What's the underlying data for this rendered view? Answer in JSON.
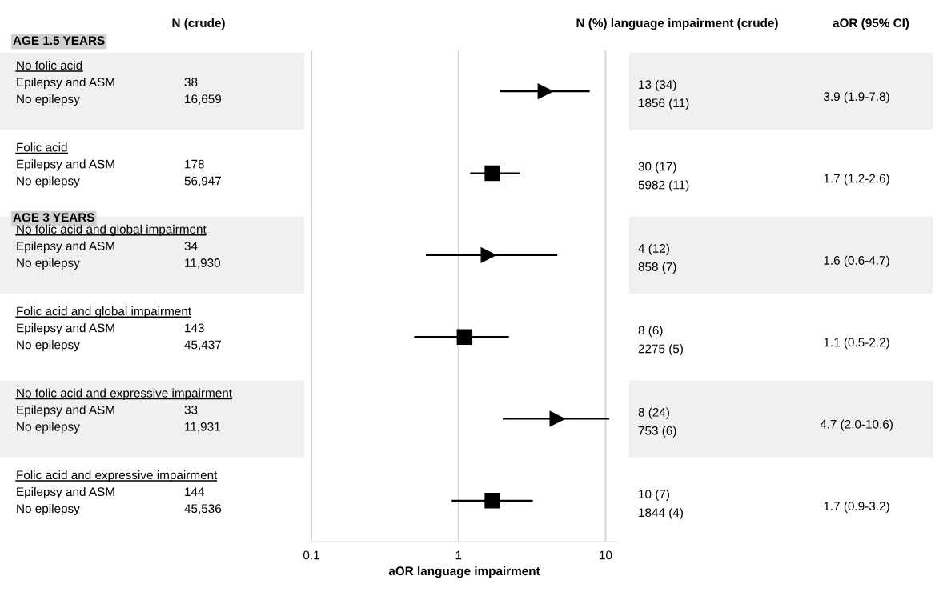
{
  "chart_data": {
    "type": "scatter",
    "orientation": "horizontal",
    "xlabel": "aOR language impairment",
    "categories": [
      "No folic acid",
      "Folic acid",
      "No folic acid and global impairment",
      "Folic acid and global impairment",
      "No folic acid and expressive impairment",
      "Folic acid and expressive impairment"
    ],
    "series": [
      {
        "color": "#000000",
        "marker": "triangle",
        "values": [
          3.9,
          null,
          1.6,
          null,
          4.7,
          null
        ],
        "errors": [
          [
            1.9,
            7.8
          ],
          null,
          [
            0.6,
            4.7
          ],
          null,
          [
            2.0,
            10.6
          ],
          null
        ]
      },
      {
        "color": "#000000",
        "marker": "square",
        "values": [
          null,
          1.7,
          null,
          1.1,
          null,
          1.7
        ],
        "errors": [
          null,
          [
            1.2,
            2.6
          ],
          null,
          [
            0.5,
            2.2
          ],
          null,
          [
            0.9,
            3.2
          ]
        ]
      }
    ],
    "log": "x",
    "xlim": [
      0.1,
      12
    ],
    "xticks": [
      0.1,
      1,
      10
    ],
    "grid": "x",
    "tick_labels": "x",
    "legend": false,
    "annotations": [
      "N (crude)",
      "N (%) language impairment (crude)",
      "aOR (95% CI)",
      "AGE 1.5 YEARS",
      "AGE 3 YEARS",
      "Epilepsy and ASM",
      "38",
      "No epilepsy",
      "16,659",
      "13 (34)",
      "1856 (11)",
      "3.9 (1.9-7.8)",
      "Epilepsy and ASM",
      "178",
      "No epilepsy",
      "56,947",
      "30 (17)",
      "5982 (11)",
      "1.7 (1.2-2.6)",
      "Epilepsy and ASM",
      "34",
      "No epilepsy",
      "11,930",
      "4 (12)",
      "858 (7)",
      "1.6 (0.6-4.7)",
      "Epilepsy and ASM",
      "143",
      "No epilepsy",
      "45,437",
      "8 (6)",
      "2275 (5)",
      "1.1 (0.5-2.2)",
      "Epilepsy and ASM",
      "33",
      "No epilepsy",
      "11,931",
      "8 (24)",
      "753 (6)",
      "4.7 (2.0-10.6)",
      "Epilepsy and ASM",
      "144",
      "No epilepsy",
      "45,536",
      "10 (7)",
      "1844 (4)",
      "1.7 (0.9-3.2)"
    ]
  }
}
